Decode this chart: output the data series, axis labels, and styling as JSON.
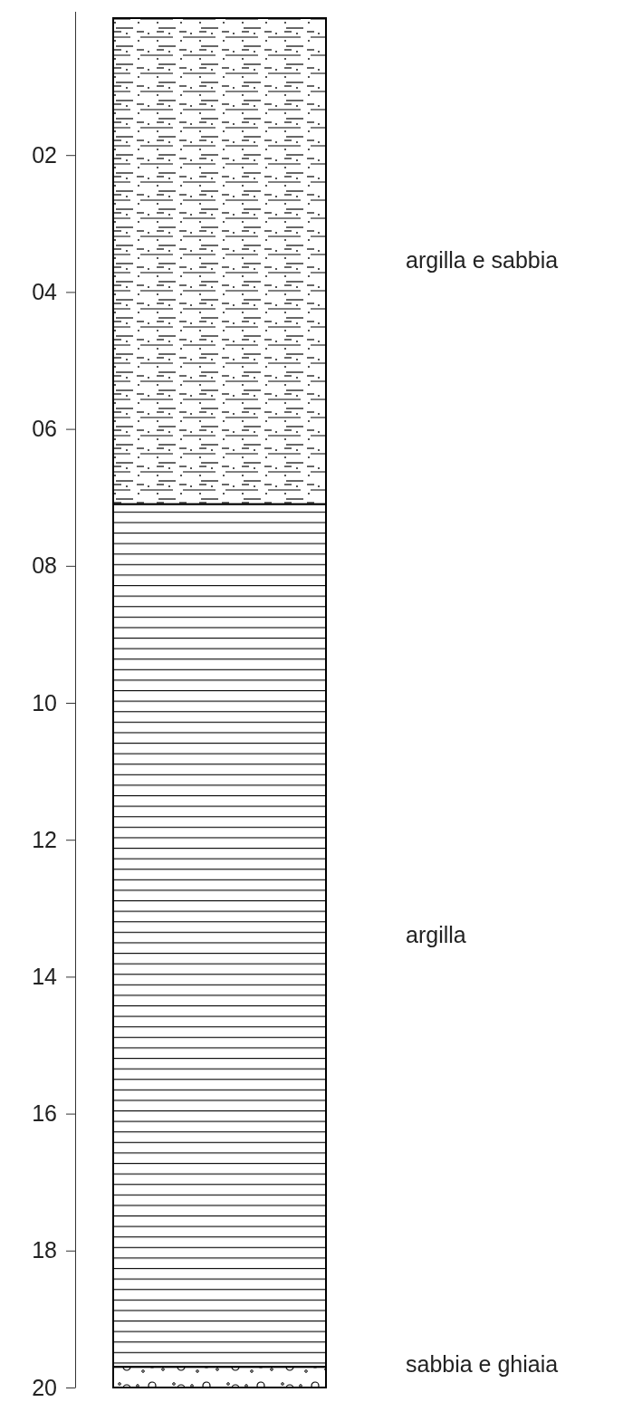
{
  "chart_data": {
    "type": "bar",
    "stacked": true,
    "categories": [
      null
    ],
    "ylim": [
      20,
      0
    ],
    "yticks": [
      {
        "value": 2,
        "label": "02"
      },
      {
        "value": 4,
        "label": "04"
      },
      {
        "value": 6,
        "label": "06"
      },
      {
        "value": 8,
        "label": "08"
      },
      10,
      12,
      14,
      16,
      18,
      20
    ],
    "tick_labels": "y",
    "grid": false,
    "legend": false,
    "series": [
      {
        "name": "argilla e sabbia",
        "color": "#000000",
        "values": [
          7.1
        ]
      },
      {
        "name": "argilla",
        "color": "#000000",
        "values": [
          12.6
        ]
      },
      {
        "name": "sabbia e ghiaia",
        "color": "#000000",
        "values": [
          0.3
        ]
      }
    ]
  }
}
